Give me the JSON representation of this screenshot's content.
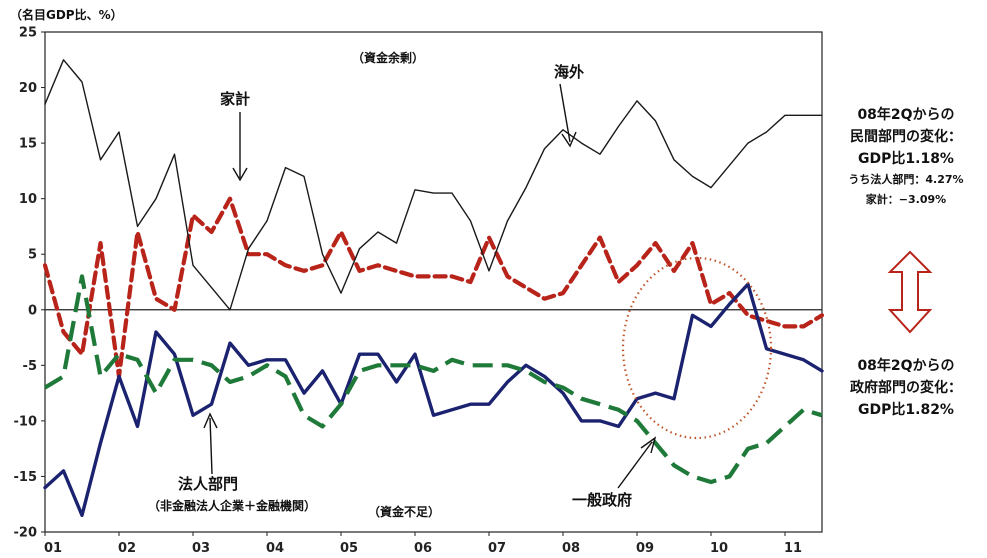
{
  "chart_data": {
    "type": "line",
    "unit_label": "（名目GDP比、%）",
    "ylim": [
      -20,
      25
    ],
    "yticks": [
      25,
      20,
      15,
      10,
      5,
      0,
      -5,
      -10,
      -15,
      -20
    ],
    "categories": [
      "01",
      "02",
      "03",
      "04",
      "05",
      "06",
      "07",
      "08",
      "09",
      "10",
      "11"
    ],
    "x_start": 2001.0,
    "x_end": 2011.5,
    "region_labels": {
      "surplus": "（資金余剰）",
      "deficit": "（資金不足）"
    },
    "series": [
      {
        "name": "海外",
        "color": "#1a1a1a",
        "style": "thin",
        "x": [
          2001.0,
          2001.25,
          2001.5,
          2001.75,
          2002.0,
          2002.25,
          2002.5,
          2002.75,
          2003.0,
          2003.25,
          2003.5,
          2003.75,
          2004.0,
          2004.25,
          2004.5,
          2004.75,
          2005.0,
          2005.25,
          2005.5,
          2005.75,
          2006.0,
          2006.25,
          2006.5,
          2006.75,
          2007.0,
          2007.25,
          2007.5,
          2007.75,
          2008.0,
          2008.25,
          2008.5,
          2008.75,
          2009.0,
          2009.25,
          2009.5,
          2009.75,
          2010.0,
          2010.25,
          2010.5,
          2010.75,
          2011.0,
          2011.25,
          2011.5
        ],
        "values": [
          18.5,
          22.5,
          20.5,
          13.5,
          16,
          7.5,
          10,
          14,
          4,
          2,
          0,
          5.5,
          8,
          12.8,
          12,
          5,
          1.5,
          5.5,
          7,
          6,
          10.8,
          10.5,
          10.5,
          8,
          3.5,
          8,
          11,
          14.5,
          16.2,
          15,
          14,
          16.5,
          18.8,
          17,
          13.5,
          12,
          11,
          13,
          15,
          16,
          17.5,
          17.5,
          17.5
        ]
      },
      {
        "name": "家計",
        "color": "#b8231a",
        "style": "dash-thick",
        "x": [
          2001.0,
          2001.25,
          2001.5,
          2001.75,
          2002.0,
          2002.25,
          2002.5,
          2002.75,
          2003.0,
          2003.25,
          2003.5,
          2003.75,
          2004.0,
          2004.25,
          2004.5,
          2004.75,
          2005.0,
          2005.25,
          2005.5,
          2005.75,
          2006.0,
          2006.25,
          2006.5,
          2006.75,
          2007.0,
          2007.25,
          2007.5,
          2007.75,
          2008.0,
          2008.25,
          2008.5,
          2008.75,
          2009.0,
          2009.25,
          2009.5,
          2009.75,
          2010.0,
          2010.25,
          2010.5,
          2010.75,
          2011.0,
          2011.25,
          2011.5
        ],
        "values": [
          4,
          -2,
          -4,
          6,
          -6,
          7,
          1,
          0,
          8.5,
          7,
          10,
          5,
          5,
          4,
          3.5,
          4,
          7,
          3.5,
          4,
          3.5,
          3,
          3,
          3,
          2.5,
          6.5,
          3,
          2,
          1,
          1.5,
          4,
          6.5,
          2.5,
          4,
          6,
          3.5,
          6,
          0.5,
          1.5,
          -0.5,
          -1,
          -1.5,
          -1.5,
          -0.5
        ]
      },
      {
        "name": "法人部門",
        "sublabel": "（非金融法人企業＋金融機関）",
        "color": "#1b2370",
        "style": "solid-thick",
        "x": [
          2001.0,
          2001.25,
          2001.5,
          2001.75,
          2002.0,
          2002.25,
          2002.5,
          2002.75,
          2003.0,
          2003.25,
          2003.5,
          2003.75,
          2004.0,
          2004.25,
          2004.5,
          2004.75,
          2005.0,
          2005.25,
          2005.5,
          2005.75,
          2006.0,
          2006.25,
          2006.5,
          2006.75,
          2007.0,
          2007.25,
          2007.5,
          2007.75,
          2008.0,
          2008.25,
          2008.5,
          2008.75,
          2009.0,
          2009.25,
          2009.5,
          2009.75,
          2010.0,
          2010.25,
          2010.5,
          2010.75,
          2011.0,
          2011.25,
          2011.5
        ],
        "values": [
          -16,
          -14.5,
          -18.5,
          -12,
          -6,
          -10.5,
          -2,
          -4,
          -9.5,
          -8.5,
          -3,
          -5,
          -4.5,
          -4.5,
          -7.5,
          -5.5,
          -8.5,
          -4,
          -4,
          -6.5,
          -4,
          -9.5,
          -9,
          -8.5,
          -8.5,
          -6.5,
          -5,
          -6,
          -7.5,
          -10,
          -10,
          -10.5,
          -8,
          -7.5,
          -8,
          -0.5,
          -1.5,
          0.5,
          2.3,
          -3.5,
          -4,
          -4.5,
          -5.5
        ]
      },
      {
        "name": "一般政府",
        "color": "#1f7a3a",
        "style": "dash-long",
        "x": [
          2001.0,
          2001.25,
          2001.5,
          2001.75,
          2002.0,
          2002.25,
          2002.5,
          2002.75,
          2003.0,
          2003.25,
          2003.5,
          2003.75,
          2004.0,
          2004.25,
          2004.5,
          2004.75,
          2005.0,
          2005.25,
          2005.5,
          2005.75,
          2006.0,
          2006.25,
          2006.5,
          2006.75,
          2007.0,
          2007.25,
          2007.5,
          2007.75,
          2008.0,
          2008.25,
          2008.5,
          2008.75,
          2009.0,
          2009.25,
          2009.5,
          2009.75,
          2010.0,
          2010.25,
          2010.5,
          2010.75,
          2011.0,
          2011.25,
          2011.5
        ],
        "values": [
          -7,
          -6,
          3,
          -6,
          -4,
          -4.5,
          -7.5,
          -4.5,
          -4.5,
          -5,
          -6.5,
          -6,
          -5,
          -6,
          -9.5,
          -10.5,
          -8.5,
          -5.5,
          -5,
          -5,
          -5,
          -5.5,
          -4.5,
          -5,
          -5,
          -5,
          -5.5,
          -6.5,
          -7,
          -8,
          -8.5,
          -9,
          -10,
          -12,
          -14,
          -15,
          -15.5,
          -15,
          -12.5,
          -12,
          -10.5,
          -9,
          -9.5
        ]
      }
    ]
  },
  "annotations": {
    "side_top": {
      "line1": "08年2Qからの",
      "line2": "民間部門の変化：",
      "line3": "GDP比1.18%",
      "line4": "うち法人部門：4.27%",
      "line5": "家計：−3.09%"
    },
    "side_bottom": {
      "line1": "08年2Qからの",
      "line2": "政府部門の変化：",
      "line3": "GDP比1.82%"
    },
    "colors": {
      "highlight_circle": "#c0552a",
      "double_arrow": "#b8231a"
    }
  }
}
